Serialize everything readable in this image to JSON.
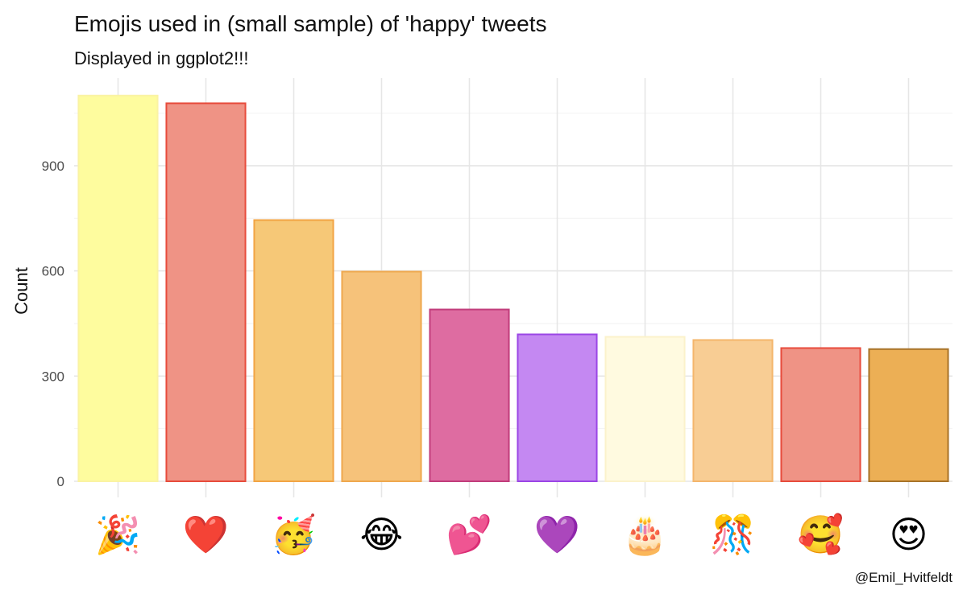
{
  "chart_data": {
    "type": "bar",
    "title": "Emojis used in (small sample) of 'happy' tweets",
    "subtitle": "Displayed in ggplot2!!!",
    "caption": "@Emil_Hvitfeldt",
    "xlabel": "",
    "ylabel": "Count",
    "ylim": [
      0,
      1150
    ],
    "yticks": [
      0,
      300,
      600,
      900
    ],
    "grid": true,
    "categories": [
      "🎉",
      "❤️",
      "🥳",
      "😂",
      "💕",
      "💜",
      "🎂",
      "🎊",
      "🥰",
      "😍"
    ],
    "emoji_names": [
      "party-popper",
      "red-heart",
      "partying-face",
      "face-with-tears-of-joy",
      "two-hearts",
      "purple-heart",
      "birthday-cake",
      "confetti-ball",
      "smiling-face-with-hearts",
      "heart-eyes"
    ],
    "values": [
      1100,
      1078,
      745,
      598,
      490,
      419,
      412,
      403,
      380,
      377
    ],
    "fill_colors": [
      "#FEFC9E",
      "#EF9385",
      "#F6C877",
      "#F6C27A",
      "#DE6CA1",
      "#C488F2",
      "#FFFAE0",
      "#F8CD94",
      "#EF9385",
      "#ECAF55"
    ],
    "edge_colors": [
      "#FAF3A3",
      "#E74C3C",
      "#F2A444",
      "#EFA84E",
      "#C13D7B",
      "#9B46E5",
      "#FBF2CB",
      "#F4B66C",
      "#E74C3C",
      "#A87329"
    ]
  }
}
